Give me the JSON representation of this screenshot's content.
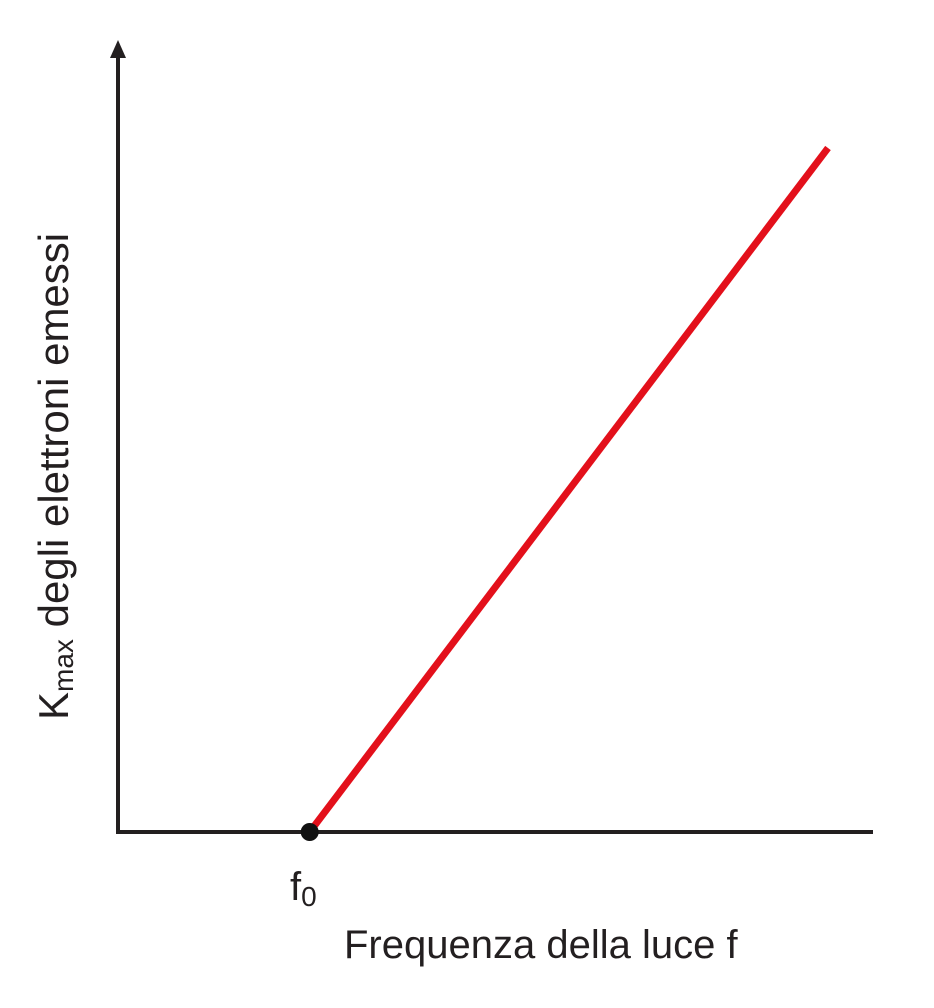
{
  "chart_data": {
    "type": "line",
    "xlabel": "Frequenza della luce f",
    "ylabel": {
      "main": "K",
      "subscript": "max",
      "rest": " degli elettroni emessi"
    },
    "x_ticks": [
      {
        "label_main": "f",
        "label_sub": "0",
        "value": 0.27
      }
    ],
    "xlim": [
      0,
      1
    ],
    "ylim": [
      0,
      1
    ],
    "grid": false,
    "series": [
      {
        "x": [
          0.27,
          1.0
        ],
        "y": [
          0,
          1.0
        ]
      }
    ],
    "markers": [
      {
        "x": 0.27,
        "y": 0
      }
    ],
    "colors": {
      "line": "#e3101b",
      "axis": "#231f20",
      "marker": "#111111",
      "background": "#ffffff"
    }
  }
}
